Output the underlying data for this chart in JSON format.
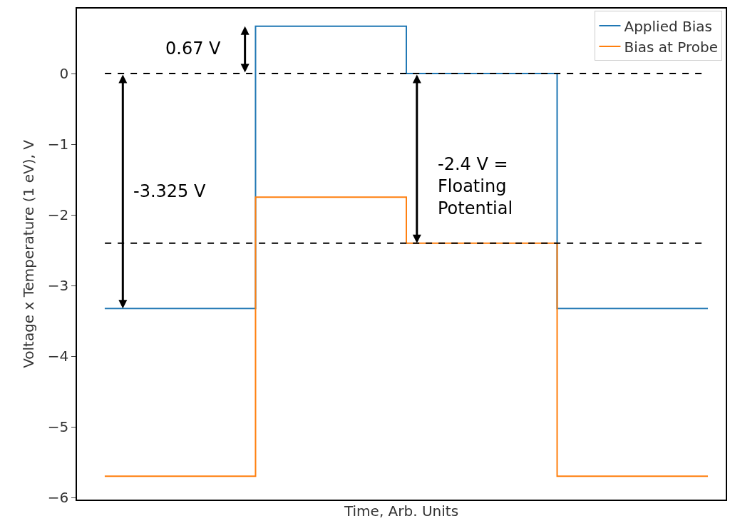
{
  "chart_data": {
    "type": "step",
    "xlabel": "Time, Arb. Units",
    "ylabel": "Voltage x Temperature (1 eV), V",
    "categories": [
      null,
      null,
      null,
      null,
      null
    ],
    "series": [
      {
        "name": "Applied Bias",
        "color": "#1f77b4",
        "values": [
          -3.325,
          0.67,
          0,
          -3.325,
          -3.325
        ]
      },
      {
        "name": "Bias at Probe",
        "color": "#ff7f0e",
        "values": [
          -5.7,
          -1.75,
          -2.4,
          -5.7,
          -5.7
        ]
      }
    ],
    "ylim": [
      -6.03,
      0.92
    ],
    "yticks": [
      {
        "value": -6,
        "label": "−6"
      },
      {
        "value": -5,
        "label": "−5"
      },
      {
        "value": -4,
        "label": "−4"
      },
      {
        "value": -3,
        "label": "−3"
      },
      {
        "value": -2,
        "label": "−2"
      },
      {
        "value": -1,
        "label": "−1"
      },
      0
    ],
    "ref_lines": [
      {
        "axis": "y",
        "value": 0,
        "color": "#000000",
        "line_style": "dashed"
      },
      {
        "axis": "y",
        "value": -2.4,
        "color": "#000000",
        "line_style": "dashed"
      }
    ],
    "annotations": [
      "0.67 V",
      "-3.325 V",
      "-2.4 V =\nFloating\nPotential"
    ],
    "legend": "top right",
    "grid": false,
    "tick_labels": "y"
  }
}
